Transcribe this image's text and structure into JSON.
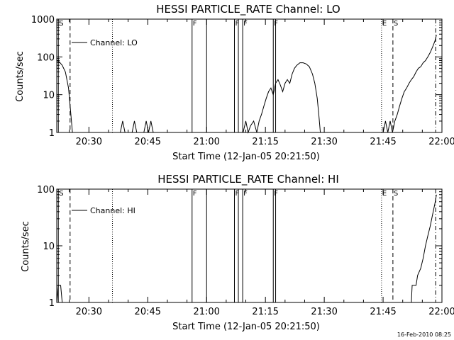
{
  "footer": {
    "timestamp": "16-Feb-2010 08:25"
  },
  "chart_data": [
    {
      "type": "line",
      "title": "HESSI PARTICLE_RATE Channel: LO",
      "xlabel": "Start Time (12-Jan-05 20:21:50)",
      "ylabel": "Counts/sec",
      "legend": {
        "label": "Channel: LO",
        "placement": "top-left"
      },
      "x_unit": "minutes since 20:00",
      "xlim": [
        21.8,
        120
      ],
      "ylim": [
        1,
        1000
      ],
      "yscale": "log",
      "x_ticks": [
        {
          "value": 30,
          "label": "20:30"
        },
        {
          "value": 45,
          "label": "20:45"
        },
        {
          "value": 60,
          "label": "21:00"
        },
        {
          "value": 75,
          "label": "21:15"
        },
        {
          "value": 90,
          "label": "21:30"
        },
        {
          "value": 105,
          "label": "21:45"
        },
        {
          "value": 120,
          "label": "22:00"
        }
      ],
      "y_ticks": [
        {
          "value": 1,
          "label": "1"
        },
        {
          "value": 10,
          "label": "10"
        },
        {
          "value": 100,
          "label": "100"
        },
        {
          "value": 1000,
          "label": "1000"
        }
      ],
      "markers": [
        {
          "x": 22.2,
          "style": "solid",
          "label": "S"
        },
        {
          "x": 25.2,
          "style": "dashed",
          "label": ""
        },
        {
          "x": 36.0,
          "style": "dotted",
          "label": ""
        },
        {
          "x": 56.3,
          "style": "solid",
          "label": "F"
        },
        {
          "x": 60.0,
          "style": "solid",
          "label": ""
        },
        {
          "x": 67.1,
          "style": "solid",
          "label": "F"
        },
        {
          "x": 68.1,
          "style": "solid",
          "label": ""
        },
        {
          "x": 69.2,
          "style": "solid",
          "label": "F"
        },
        {
          "x": 77.0,
          "style": "solid",
          "label": "F"
        },
        {
          "x": 77.6,
          "style": "solid",
          "label": ""
        },
        {
          "x": 104.6,
          "style": "dotted",
          "label": "E"
        },
        {
          "x": 107.5,
          "style": "dashed",
          "label": "S"
        },
        {
          "x": 118.4,
          "style": "dashdot",
          "label": ""
        }
      ],
      "series": [
        {
          "name": "Channel: LO",
          "segments": [
            [
              [
                21.8,
                80
              ],
              [
                22.4,
                75
              ],
              [
                23.2,
                60
              ],
              [
                24.0,
                40
              ],
              [
                24.8,
                15
              ],
              [
                25.4,
                3
              ],
              [
                25.8,
                1
              ]
            ],
            [
              [
                38.0,
                1
              ],
              [
                38.6,
                2
              ],
              [
                39.2,
                1
              ]
            ],
            [
              [
                41.0,
                1
              ],
              [
                41.6,
                2
              ],
              [
                42.2,
                1
              ]
            ],
            [
              [
                44.0,
                1
              ],
              [
                44.6,
                2
              ],
              [
                45.2,
                1
              ],
              [
                45.8,
                2
              ],
              [
                46.4,
                1
              ]
            ],
            [
              [
                69.3,
                1
              ],
              [
                70.0,
                2
              ],
              [
                70.6,
                1
              ],
              [
                71.2,
                1.5
              ],
              [
                72.0,
                2
              ],
              [
                72.8,
                1
              ],
              [
                73.4,
                2
              ],
              [
                74.0,
                3
              ],
              [
                74.6,
                5
              ],
              [
                75.2,
                8
              ],
              [
                75.8,
                12
              ],
              [
                76.4,
                15
              ],
              [
                77.0,
                10
              ],
              [
                77.6,
                20
              ],
              [
                78.2,
                25
              ],
              [
                78.8,
                18
              ],
              [
                79.4,
                12
              ],
              [
                80.0,
                20
              ],
              [
                80.6,
                25
              ],
              [
                81.2,
                20
              ],
              [
                81.8,
                35
              ],
              [
                82.4,
                50
              ],
              [
                83.0,
                60
              ],
              [
                83.8,
                70
              ],
              [
                84.6,
                70
              ],
              [
                85.4,
                65
              ],
              [
                86.2,
                55
              ],
              [
                87.0,
                35
              ],
              [
                87.6,
                20
              ],
              [
                88.2,
                8
              ],
              [
                88.6,
                3
              ],
              [
                89.0,
                1
              ]
            ],
            [
              [
                105.0,
                1
              ],
              [
                105.6,
                2
              ],
              [
                106.2,
                1
              ],
              [
                106.8,
                2
              ],
              [
                107.4,
                1
              ],
              [
                108.0,
                2
              ],
              [
                108.6,
                3
              ],
              [
                109.2,
                5
              ],
              [
                109.8,
                8
              ],
              [
                110.4,
                12
              ],
              [
                111.0,
                15
              ],
              [
                111.6,
                20
              ],
              [
                112.2,
                25
              ],
              [
                112.8,
                30
              ],
              [
                113.4,
                40
              ],
              [
                114.0,
                50
              ],
              [
                114.6,
                55
              ],
              [
                115.2,
                70
              ],
              [
                115.8,
                80
              ],
              [
                116.4,
                100
              ],
              [
                117.0,
                130
              ],
              [
                117.6,
                180
              ],
              [
                118.2,
                260
              ],
              [
                118.6,
                380
              ]
            ]
          ]
        }
      ]
    },
    {
      "type": "line",
      "title": "HESSI PARTICLE_RATE Channel: HI",
      "xlabel": "Start Time (12-Jan-05 20:21:50)",
      "ylabel": "Counts/sec",
      "legend": {
        "label": "Channel: HI",
        "placement": "top-left"
      },
      "x_unit": "minutes since 20:00",
      "xlim": [
        21.8,
        120
      ],
      "ylim": [
        1,
        100
      ],
      "yscale": "log",
      "x_ticks": [
        {
          "value": 30,
          "label": "20:30"
        },
        {
          "value": 45,
          "label": "20:45"
        },
        {
          "value": 60,
          "label": "21:00"
        },
        {
          "value": 75,
          "label": "21:15"
        },
        {
          "value": 90,
          "label": "21:30"
        },
        {
          "value": 105,
          "label": "21:45"
        },
        {
          "value": 120,
          "label": "22:00"
        }
      ],
      "y_ticks": [
        {
          "value": 1,
          "label": "1"
        },
        {
          "value": 10,
          "label": "10"
        },
        {
          "value": 100,
          "label": "100"
        }
      ],
      "markers": [
        {
          "x": 22.2,
          "style": "solid",
          "label": "S"
        },
        {
          "x": 25.2,
          "style": "dashed",
          "label": ""
        },
        {
          "x": 36.0,
          "style": "dotted",
          "label": ""
        },
        {
          "x": 56.3,
          "style": "solid",
          "label": "F"
        },
        {
          "x": 60.0,
          "style": "solid",
          "label": ""
        },
        {
          "x": 67.1,
          "style": "solid",
          "label": "F"
        },
        {
          "x": 68.1,
          "style": "solid",
          "label": ""
        },
        {
          "x": 69.2,
          "style": "solid",
          "label": "F"
        },
        {
          "x": 77.0,
          "style": "solid",
          "label": "F"
        },
        {
          "x": 77.6,
          "style": "solid",
          "label": ""
        },
        {
          "x": 104.6,
          "style": "dotted",
          "label": "E"
        },
        {
          "x": 107.5,
          "style": "dashed",
          "label": "S"
        },
        {
          "x": 118.4,
          "style": "dashdot",
          "label": ""
        }
      ],
      "series": [
        {
          "name": "Channel: HI",
          "segments": [
            [
              [
                21.8,
                1
              ],
              [
                22.2,
                2
              ],
              [
                22.8,
                2
              ],
              [
                23.2,
                1
              ]
            ],
            [
              [
                112.2,
                1
              ],
              [
                112.4,
                2
              ],
              [
                113.4,
                2
              ],
              [
                113.8,
                3
              ],
              [
                114.6,
                4
              ],
              [
                115.2,
                6
              ],
              [
                115.8,
                10
              ],
              [
                116.4,
                15
              ],
              [
                117.0,
                22
              ],
              [
                117.6,
                35
              ],
              [
                118.2,
                55
              ],
              [
                118.6,
                80
              ]
            ]
          ]
        }
      ]
    }
  ]
}
